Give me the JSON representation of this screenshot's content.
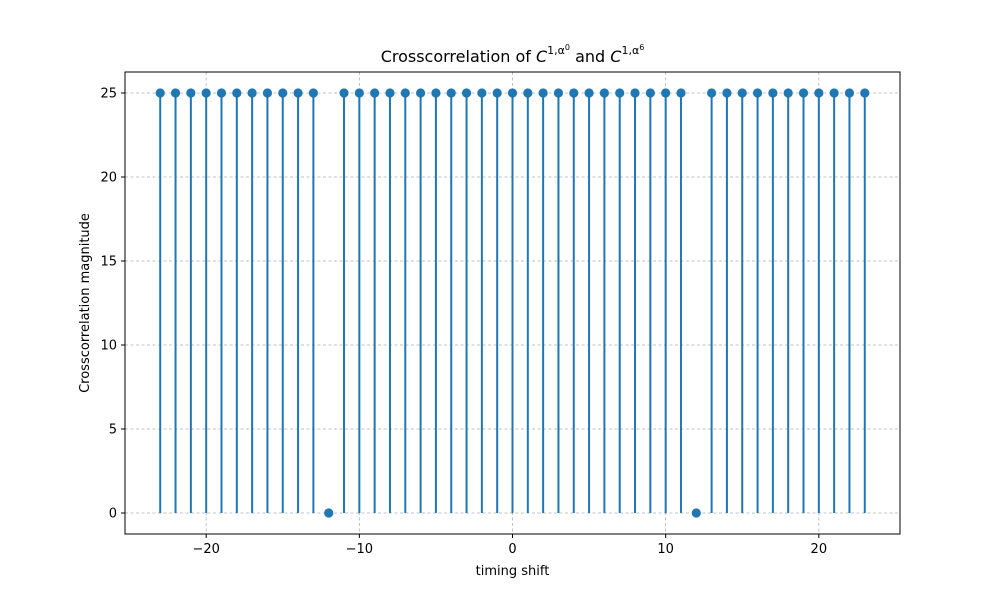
{
  "chart_data": {
    "type": "stem",
    "title": {
      "prefix": "Crosscorrelation of ",
      "term1_base": "C",
      "term1_sup": "1,α",
      "term1_subsup": "0",
      "middle": " and ",
      "term2_base": "C",
      "term2_sup": "1,α",
      "term2_subsup": "6"
    },
    "xlabel": "timing shift",
    "ylabel": "Crosscorrelation magnitude",
    "xlim": [
      -25.3,
      25.3
    ],
    "ylim": [
      -1.25,
      26.25
    ],
    "xticks": [
      -20,
      -10,
      0,
      10,
      20
    ],
    "xtick_labels": [
      "−20",
      "−10",
      "0",
      "10",
      "20"
    ],
    "yticks": [
      0,
      5,
      10,
      15,
      20,
      25
    ],
    "ytick_labels": [
      "0",
      "5",
      "10",
      "15",
      "20",
      "25"
    ],
    "grid": true,
    "color": "#1f77b4",
    "series": [
      {
        "x": [
          -23,
          -22,
          -21,
          -20,
          -19,
          -18,
          -17,
          -16,
          -15,
          -14,
          -13,
          -12,
          -11,
          -10,
          -9,
          -8,
          -7,
          -6,
          -5,
          -4,
          -3,
          -2,
          -1,
          0,
          1,
          2,
          3,
          4,
          5,
          6,
          7,
          8,
          9,
          10,
          11,
          12,
          13,
          14,
          15,
          16,
          17,
          18,
          19,
          20,
          21,
          22,
          23
        ],
        "values": [
          25,
          25,
          25,
          25,
          25,
          25,
          25,
          25,
          25,
          25,
          25,
          0,
          25,
          25,
          25,
          25,
          25,
          25,
          25,
          25,
          25,
          25,
          25,
          25,
          25,
          25,
          25,
          25,
          25,
          25,
          25,
          25,
          25,
          25,
          25,
          0,
          25,
          25,
          25,
          25,
          25,
          25,
          25,
          25,
          25,
          25,
          25
        ]
      }
    ]
  }
}
